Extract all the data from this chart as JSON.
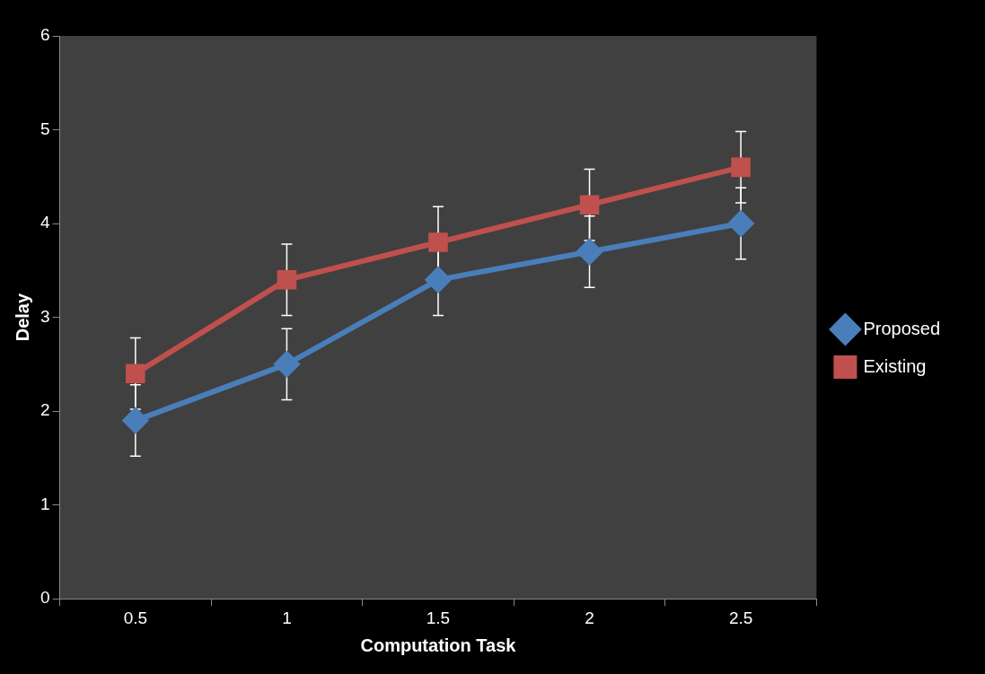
{
  "chart_data": {
    "type": "line",
    "xlabel": "Computation Task",
    "ylabel": "Delay",
    "categories": [
      "0.5",
      "1",
      "1.5",
      "2",
      "2.5"
    ],
    "series": [
      {
        "name": "Proposed",
        "color": "#4a7ebb",
        "marker": "diamond",
        "values": [
          1.9,
          2.5,
          3.4,
          3.7,
          4.0
        ],
        "errors": [
          0.38,
          0.38,
          0.38,
          0.38,
          0.38
        ]
      },
      {
        "name": "Existing",
        "color": "#c0504d",
        "marker": "square",
        "values": [
          2.4,
          3.4,
          3.8,
          4.2,
          4.6
        ],
        "errors": [
          0.38,
          0.38,
          0.38,
          0.38,
          0.38
        ]
      }
    ],
    "ylim": [
      0,
      6
    ],
    "yticks": [
      0,
      1,
      2,
      3,
      4,
      5,
      6
    ],
    "grid": false,
    "legend": "right"
  }
}
